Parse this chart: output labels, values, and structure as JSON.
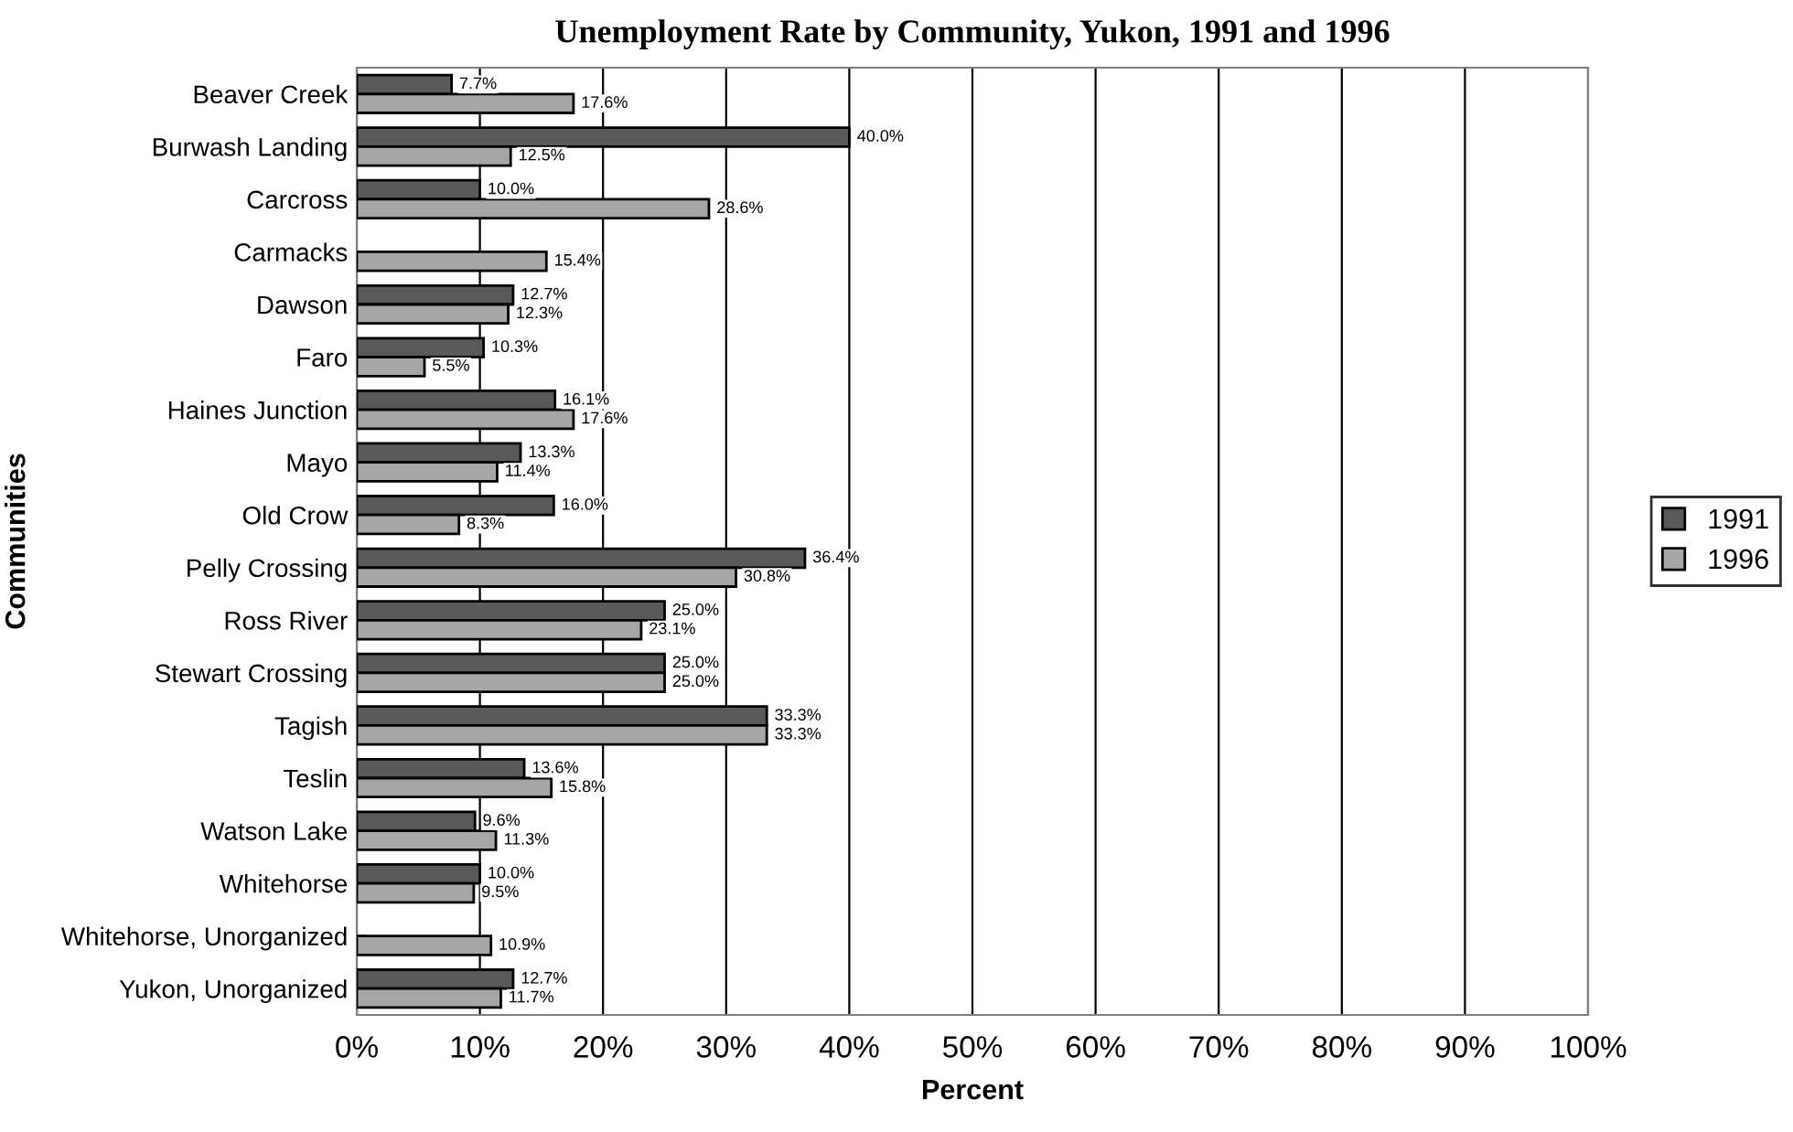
{
  "chart_data": {
    "type": "bar",
    "orientation": "horizontal",
    "title": "Unemployment Rate by Community, Yukon, 1991 and 1996",
    "xlabel": "Percent",
    "ylabel": "Communities",
    "categories": [
      "Beaver Creek",
      "Burwash Landing",
      "Carcross",
      "Carmacks",
      "Dawson",
      "Faro",
      "Haines Junction",
      "Mayo",
      "Old Crow",
      "Pelly Crossing",
      "Ross River",
      "Stewart Crossing",
      "Tagish",
      "Teslin",
      "Watson Lake",
      "Whitehorse",
      "Whitehorse, Unorganized",
      "Yukon, Unorganized"
    ],
    "series": [
      {
        "name": "1991",
        "color": "#595959",
        "values": [
          7.7,
          40.0,
          10.0,
          null,
          12.7,
          10.3,
          16.1,
          13.3,
          16.0,
          36.4,
          25.0,
          25.0,
          33.3,
          13.6,
          9.6,
          10.0,
          null,
          12.7
        ],
        "value_labels": [
          "7.7%",
          "40.0%",
          "10.0%",
          null,
          "12.7%",
          "10.3%",
          "16.1%",
          "13.3%",
          "16.0%",
          "36.4%",
          "25.0%",
          "25.0%",
          "33.3%",
          "13.6%",
          "9.6%",
          "10.0%",
          null,
          "12.7%"
        ]
      },
      {
        "name": "1996",
        "color": "#a6a6a6",
        "values": [
          17.6,
          12.5,
          28.6,
          15.4,
          12.3,
          5.5,
          17.6,
          11.4,
          8.3,
          30.8,
          23.1,
          25.0,
          33.3,
          15.8,
          11.3,
          9.5,
          10.9,
          11.7
        ],
        "value_labels": [
          "17.6%",
          "12.5%",
          "28.6%",
          "15.4%",
          "12.3%",
          "5.5%",
          "17.6%",
          "11.4%",
          "8.3%",
          "30.8%",
          "23.1%",
          "25.0%",
          "33.3%",
          "15.8%",
          "11.3%",
          "9.5%",
          "10.9%",
          "11.7%"
        ]
      }
    ],
    "xlim": [
      0,
      100
    ],
    "xticks": [
      {
        "value": 0,
        "label": "0%"
      },
      {
        "value": 10,
        "label": "10%"
      },
      {
        "value": 20,
        "label": "20%"
      },
      {
        "value": 30,
        "label": "30%"
      },
      {
        "value": 40,
        "label": "40%"
      },
      {
        "value": 50,
        "label": "50%"
      },
      {
        "value": 60,
        "label": "60%"
      },
      {
        "value": 70,
        "label": "70%"
      },
      {
        "value": 80,
        "label": "80%"
      },
      {
        "value": 90,
        "label": "90%"
      },
      {
        "value": 100,
        "label": "100%"
      }
    ],
    "grid": "x",
    "legend": "right"
  }
}
